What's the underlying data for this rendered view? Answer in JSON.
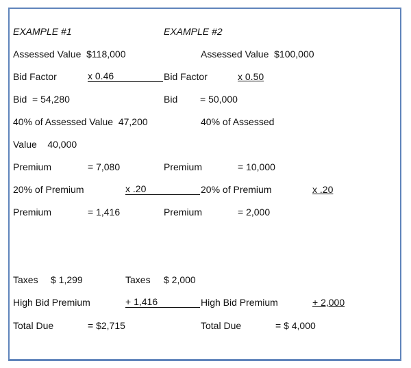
{
  "example1": {
    "heading": "EXAMPLE #1",
    "assessed_value": "Assessed Value  $118,000",
    "bid_factor_label": "Bid Factor",
    "bid_factor": "x 0.46",
    "bid_label": "Bid",
    "bid": "= 54,280",
    "forty_pct_line": "40% of Assessed Value  47,200",
    "value_line": "Value    40,000",
    "premium_label": "Premium",
    "premium": "= 7,080",
    "twenty_pct_label": "20% of Premium",
    "twenty_pct": "x .20",
    "premium2_label": "Premium",
    "premium2": "= 1,416",
    "taxes_label": "Taxes",
    "taxes": "$ 1,299",
    "high_bid_label": "High Bid Premium",
    "high_bid": "+ 1,416",
    "total_label": "Total Due",
    "total": "= $2,715"
  },
  "example2": {
    "heading": "EXAMPLE #2",
    "assessed_value": "Assessed Value  $100,000",
    "bid_factor_label": "Bid Factor",
    "bid_factor": "x 0.50",
    "bid_label": "Bid",
    "bid": "= 50,000",
    "forty_pct_line": "40% of Assessed",
    "premium_label": "Premium",
    "premium": "= 10,000",
    "twenty_pct_label": "20% of Premium",
    "twenty_pct": "x .20",
    "premium2_label": "Premium",
    "premium2": "= 2,000",
    "taxes_label": "Taxes",
    "taxes": "$ 2,000",
    "high_bid_label": "High Bid Premium",
    "high_bid": "+ 2,000",
    "total_label": "Total Due",
    "total": "= $ 4,000"
  }
}
